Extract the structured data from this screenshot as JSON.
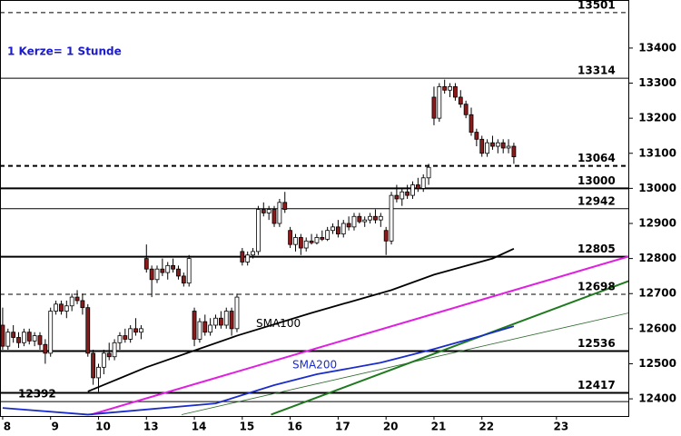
{
  "chart_data": {
    "type": "candlestick",
    "annotation": "1 Kerze= 1 Stunde",
    "categories": [
      "8",
      null,
      null,
      null,
      null,
      null,
      null,
      null,
      null,
      "9",
      null,
      null,
      null,
      null,
      null,
      null,
      null,
      null,
      "10",
      null,
      null,
      null,
      null,
      null,
      null,
      null,
      null,
      "13",
      null,
      null,
      null,
      null,
      null,
      null,
      null,
      null,
      "14",
      null,
      null,
      null,
      null,
      null,
      null,
      null,
      null,
      "15",
      null,
      null,
      null,
      null,
      null,
      null,
      null,
      null,
      "16",
      null,
      null,
      null,
      null,
      null,
      null,
      null,
      null,
      "17",
      null,
      null,
      null,
      null,
      null,
      null,
      null,
      null,
      "20",
      null,
      null,
      null,
      null,
      null,
      null,
      null,
      null,
      "21",
      null,
      null,
      null,
      null,
      null,
      null,
      null,
      null,
      "22",
      null,
      null,
      null,
      null,
      null,
      null,
      null,
      null,
      null,
      null,
      null,
      null,
      null,
      "23"
    ],
    "open": [
      12610,
      12550,
      12590,
      12575,
      12560,
      12590,
      12565,
      12580,
      12555,
      12530,
      12650,
      12670,
      12650,
      12665,
      12690,
      12680,
      12660,
      12530,
      12460,
      12490,
      12530,
      12520,
      12560,
      12580,
      12570,
      12600,
      12590,
      12800,
      12770,
      12740,
      12770,
      12760,
      12780,
      12770,
      12750,
      12730,
      12650,
      12570,
      12620,
      12590,
      12610,
      12630,
      12610,
      12650,
      12600,
      12820,
      12790,
      12810,
      12820,
      12940,
      12930,
      12940,
      12900,
      12960,
      12880,
      12840,
      12860,
      12830,
      12850,
      12845,
      12860,
      12855,
      12880,
      12890,
      12870,
      12900,
      12890,
      12920,
      12905,
      12910,
      12920,
      12910,
      12880,
      12850,
      12980,
      12970,
      12990,
      12980,
      13010,
      13000,
      13030,
      13260,
      13200,
      13290,
      13280,
      13290,
      13260,
      13240,
      13210,
      13160,
      13140,
      13100,
      13130,
      13120,
      13130,
      13115,
      13120,
      null,
      null,
      null,
      null,
      null,
      null,
      null,
      null
    ],
    "high": [
      12660,
      12600,
      12610,
      12590,
      12600,
      12600,
      12590,
      12590,
      12570,
      12660,
      12680,
      12680,
      12680,
      12700,
      12710,
      12700,
      12670,
      12540,
      12500,
      12540,
      12560,
      12570,
      12590,
      12600,
      12610,
      12630,
      12610,
      12840,
      12780,
      12780,
      12800,
      12790,
      12800,
      12780,
      12760,
      12810,
      12660,
      12630,
      12640,
      12630,
      12640,
      12650,
      12660,
      12660,
      12700,
      12830,
      12820,
      12830,
      12950,
      12960,
      12950,
      12950,
      12970,
      12990,
      12890,
      12870,
      12870,
      12860,
      12870,
      12870,
      12880,
      12890,
      12900,
      12910,
      12910,
      12920,
      12930,
      12930,
      12920,
      12930,
      12940,
      12930,
      12890,
      12990,
      13010,
      13000,
      13010,
      13020,
      13030,
      13040,
      13070,
      13290,
      13300,
      13310,
      13300,
      13300,
      13280,
      13250,
      13230,
      13170,
      13150,
      13140,
      13150,
      13140,
      13140,
      13140,
      13130,
      null,
      null,
      null,
      null,
      null,
      null,
      null,
      null
    ],
    "low": [
      12540,
      12540,
      12560,
      12545,
      12550,
      12555,
      12550,
      12540,
      12500,
      12520,
      12640,
      12640,
      12630,
      12650,
      12670,
      12640,
      12520,
      12440,
      12420,
      12470,
      12510,
      12510,
      12540,
      12560,
      12560,
      12580,
      12570,
      12760,
      12690,
      12730,
      12750,
      12740,
      12760,
      12740,
      12720,
      12720,
      12550,
      12560,
      12580,
      12580,
      12600,
      12600,
      12600,
      12580,
      12590,
      12780,
      12780,
      12800,
      12810,
      12920,
      12910,
      12890,
      12890,
      12930,
      12830,
      12820,
      12810,
      12820,
      12840,
      12840,
      12850,
      12850,
      12870,
      12860,
      12860,
      12880,
      12880,
      12900,
      12890,
      12900,
      12900,
      12890,
      12810,
      12840,
      12960,
      12950,
      12970,
      12970,
      12990,
      12990,
      13010,
      13180,
      13190,
      13270,
      13260,
      13250,
      13230,
      13200,
      13150,
      13120,
      13090,
      13090,
      13110,
      13100,
      13100,
      13100,
      13070,
      null,
      null,
      null,
      null,
      null,
      null,
      null,
      null
    ],
    "close": [
      12550,
      12590,
      12575,
      12560,
      12590,
      12565,
      12580,
      12555,
      12530,
      12650,
      12670,
      12650,
      12665,
      12690,
      12680,
      12660,
      12530,
      12460,
      12490,
      12530,
      12520,
      12560,
      12580,
      12570,
      12600,
      12590,
      12600,
      12770,
      12740,
      12770,
      12760,
      12780,
      12770,
      12750,
      12730,
      12800,
      12570,
      12620,
      12590,
      12610,
      12630,
      12610,
      12650,
      12600,
      12690,
      12790,
      12810,
      12820,
      12940,
      12930,
      12940,
      12900,
      12960,
      12940,
      12840,
      12860,
      12830,
      12850,
      12845,
      12860,
      12855,
      12880,
      12890,
      12870,
      12900,
      12890,
      12920,
      12905,
      12910,
      12920,
      12910,
      12920,
      12850,
      12980,
      12970,
      12990,
      12980,
      13010,
      13000,
      13030,
      13060,
      13200,
      13290,
      13280,
      13290,
      13260,
      13240,
      13210,
      13160,
      13140,
      13100,
      13130,
      13120,
      13130,
      13115,
      13120,
      13090,
      null,
      null,
      null,
      null,
      null,
      null,
      null,
      null
    ],
    "up_color": "#ffffff",
    "down_color": "#8b1a1a",
    "ylim": [
      12351,
      13537
    ],
    "yticks": [
      12400,
      12500,
      12600,
      12700,
      12800,
      12900,
      13000,
      13100,
      13200,
      13300,
      13400
    ],
    "levels": [
      {
        "value": 13501,
        "dashed": true,
        "weight": "thin"
      },
      {
        "value": 13314,
        "dashed": false,
        "weight": "thin"
      },
      {
        "value": 13064,
        "dashed": true,
        "weight": "thick"
      },
      {
        "value": 13000,
        "dashed": false,
        "weight": "thick"
      },
      {
        "value": 12942,
        "dashed": false,
        "weight": "thin"
      },
      {
        "value": 12805,
        "dashed": false,
        "weight": "thick"
      },
      {
        "value": 12698,
        "dashed": true,
        "weight": "thin"
      },
      {
        "value": 12536,
        "dashed": false,
        "weight": "thick"
      },
      {
        "value": 12417,
        "dashed": false,
        "weight": "thick"
      },
      {
        "value": 12392,
        "dashed": false,
        "weight": "thin",
        "label_side": "left"
      }
    ],
    "series": [
      {
        "name": "SMA100",
        "color": "#000000",
        "x": [
          16,
          27,
          44,
          58,
          73,
          81,
          92,
          96
        ],
        "values": [
          12421,
          12490,
          12580,
          12645,
          12710,
          12754,
          12800,
          12828
        ]
      },
      {
        "name": "SMA200",
        "color": "#1a2ccc",
        "x": [
          0,
          16,
          40,
          51,
          59,
          71,
          81,
          90,
          96
        ],
        "values": [
          12374,
          12355,
          12387,
          12439,
          12470,
          12503,
          12542,
          12580,
          12607
        ]
      }
    ],
    "trendlines": [
      {
        "color": "#e020e0",
        "x": [
          16.6,
          117.6
        ],
        "values": [
          12355,
          12806
        ]
      },
      {
        "color": "#1f7a1f",
        "x": [
          50.4,
          117.6
        ],
        "values": [
          12355,
          12736
        ]
      },
      {
        "color": "#2e6b2e",
        "x": [
          33.6,
          117.6
        ],
        "values": [
          12355,
          12645
        ]
      }
    ]
  }
}
